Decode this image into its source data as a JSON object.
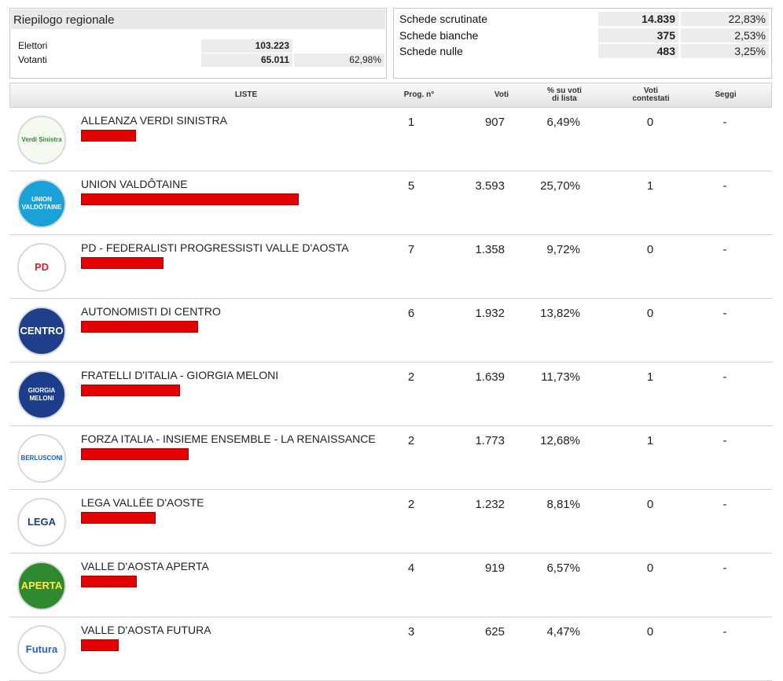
{
  "summary": {
    "title": "Riepilogo regionale",
    "elettori_label": "Elettori",
    "elettori_value": "103.223",
    "votanti_label": "Votanti",
    "votanti_value": "65.011",
    "votanti_perc": "62,98%"
  },
  "schede": {
    "scrutinate_label": "Schede scrutinate",
    "scrutinate_value": "14.839",
    "scrutinate_perc": "22,83%",
    "bianche_label": "Schede bianche",
    "bianche_value": "375",
    "bianche_perc": "2,53%",
    "nulle_label": "Schede nulle",
    "nulle_value": "483",
    "nulle_perc": "3,25%"
  },
  "table": {
    "headers": {
      "liste": "LISTE",
      "prog": "Prog. n°",
      "voti": "Voti",
      "perc_line1": "% su voti",
      "perc_line2": "di lista",
      "contestati_line1": "Voti",
      "contestati_line2": "contestati",
      "seggi": "Seggi"
    },
    "rows": [
      {
        "name": "ALLEANZA VERDI SINISTRA",
        "prog": "1",
        "voti": "907",
        "perc": "6,49%",
        "perc_value": 6.49,
        "contestati": "0",
        "seggi": "-",
        "logo": {
          "icon": "avs-logo",
          "text": "Verdi Sinistra",
          "bg": "#f4faf0",
          "fg": "#2e8b2e"
        }
      },
      {
        "name": "UNION VALDÔTAINE",
        "prog": "5",
        "voti": "3.593",
        "perc": "25,70%",
        "perc_value": 25.7,
        "contestati": "1",
        "seggi": "-",
        "logo": {
          "icon": "union-valdotaine-logo",
          "text": "UNION VALDÔTAINE",
          "bg": "#1aa2d8",
          "fg": "#ffffff"
        }
      },
      {
        "name": "PD - FEDERALISTI PROGRESSISTI VALLE D'AOSTA",
        "prog": "7",
        "voti": "1.358",
        "perc": "9,72%",
        "perc_value": 9.72,
        "contestati": "0",
        "seggi": "-",
        "logo": {
          "icon": "pd-logo",
          "text": "PD",
          "bg": "#ffffff",
          "fg": "#d0202a"
        }
      },
      {
        "name": "AUTONOMISTI DI CENTRO",
        "prog": "6",
        "voti": "1.932",
        "perc": "13,82%",
        "perc_value": 13.82,
        "contestati": "0",
        "seggi": "-",
        "logo": {
          "icon": "autonomisti-centro-logo",
          "text": "CENTRO",
          "bg": "#1e3f8a",
          "fg": "#ffffff"
        }
      },
      {
        "name": "FRATELLI D'ITALIA - GIORGIA MELONI",
        "prog": "2",
        "voti": "1.639",
        "perc": "11,73%",
        "perc_value": 11.73,
        "contestati": "1",
        "seggi": "-",
        "logo": {
          "icon": "fdi-logo",
          "text": "GIORGIA MELONI",
          "bg": "#1c3c8c",
          "fg": "#ffffff"
        }
      },
      {
        "name": "FORZA ITALIA - INSIEME ENSEMBLE - LA RENAISSANCE",
        "prog": "2",
        "voti": "1.773",
        "perc": "12,68%",
        "perc_value": 12.68,
        "contestati": "1",
        "seggi": "-",
        "logo": {
          "icon": "forza-italia-logo",
          "text": "BERLUSCONI",
          "bg": "#ffffff",
          "fg": "#1a5fb4"
        }
      },
      {
        "name": "LEGA VALLÉE D'AOSTE",
        "prog": "2",
        "voti": "1.232",
        "perc": "8,81%",
        "perc_value": 8.81,
        "contestati": "0",
        "seggi": "-",
        "logo": {
          "icon": "lega-logo",
          "text": "LEGA",
          "bg": "#ffffff",
          "fg": "#1a3c8c"
        }
      },
      {
        "name": "VALLE D'AOSTA APERTA",
        "prog": "4",
        "voti": "919",
        "perc": "6,57%",
        "perc_value": 6.57,
        "contestati": "0",
        "seggi": "-",
        "logo": {
          "icon": "vda-aperta-logo",
          "text": "APERTA",
          "bg": "#2f8a2f",
          "fg": "#ffe84a"
        }
      },
      {
        "name": "VALLE D'AOSTA FUTURA",
        "prog": "3",
        "voti": "625",
        "perc": "4,47%",
        "perc_value": 4.47,
        "contestati": "0",
        "seggi": "-",
        "logo": {
          "icon": "vda-futura-logo",
          "text": "Futura",
          "bg": "#ffffff",
          "fg": "#2a64b8"
        }
      }
    ]
  },
  "colors": {
    "bar": "#e30000",
    "header_bg": "#e9e9e9",
    "row_border": "#d4d4d4"
  }
}
